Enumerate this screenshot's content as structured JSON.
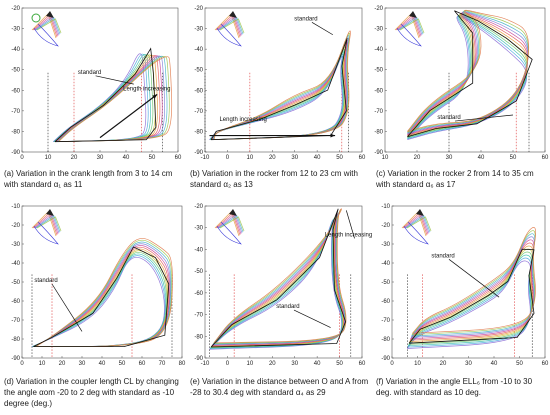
{
  "figure": {
    "panels": [
      {
        "caption": "(a) Variation in the crank length from 3 to 14 cm with standard α₁ as 11"
      },
      {
        "caption": "(b) Variation in the rocker from 12 to 23 cm with standard α₂ as 13"
      },
      {
        "caption": "(c) Variation in the rocker 2 from 14 to 35 cm with standard α₆ as 17"
      },
      {
        "caption": "(d) Variation in the coupler length CL by changing the angle αom -20 to 2 deg with standard as -10 degree (deg.)"
      },
      {
        "caption": "(e) Variation in the distance between O and A from -28 to 30.4 deg with standard α₄ as 29"
      },
      {
        "caption": "(f) Variation in the angle ELL₆ from -10 to 30 deg. with standard as 10 deg."
      }
    ]
  },
  "chart_data": [
    {
      "type": "line",
      "panel": "a",
      "xlim": [
        0,
        60
      ],
      "ylim": [
        -90,
        -20
      ],
      "xticks": [
        "0",
        "10",
        "20",
        "30",
        "40",
        "50",
        "60"
      ],
      "yticks": [
        "-20",
        "-30",
        "-40",
        "-50",
        "-60",
        "-70",
        "-80",
        "-90"
      ],
      "annotations": [
        "standard",
        "Length increasing"
      ],
      "series_count": 12
    },
    {
      "type": "line",
      "panel": "b",
      "xlim": [
        -10,
        60
      ],
      "ylim": [
        -90,
        -20
      ],
      "xticks": [
        "-10",
        "0",
        "10",
        "20",
        "30",
        "40",
        "50",
        "60"
      ],
      "yticks": [
        "-20",
        "-30",
        "-40",
        "-50",
        "-60",
        "-70",
        "-80",
        "-90"
      ],
      "annotations": [
        "standard",
        "Length increasing"
      ],
      "series_count": 12
    },
    {
      "type": "line",
      "panel": "c",
      "xlim": [
        10,
        60
      ],
      "ylim": [
        -90,
        -20
      ],
      "xticks": [
        "10",
        "20",
        "30",
        "40",
        "50",
        "60"
      ],
      "yticks": [
        "-20",
        "-30",
        "-40",
        "-50",
        "-60",
        "-70",
        "-80",
        "-90"
      ],
      "annotations": [
        "standard"
      ],
      "series_count": 12
    },
    {
      "type": "line",
      "panel": "d",
      "xlim": [
        0,
        80
      ],
      "ylim": [
        -90,
        -10
      ],
      "xticks": [
        "0",
        "10",
        "20",
        "30",
        "40",
        "50",
        "60",
        "70",
        "80"
      ],
      "yticks": [
        "-10",
        "-20",
        "-30",
        "-40",
        "-50",
        "-60",
        "-70",
        "-80",
        "-90"
      ],
      "annotations": [
        "standard"
      ],
      "series_count": 12
    },
    {
      "type": "line",
      "panel": "e",
      "xlim": [
        -10,
        60
      ],
      "ylim": [
        -90,
        -20
      ],
      "xticks": [
        "-10",
        "0",
        "10",
        "20",
        "30",
        "40",
        "50",
        "60"
      ],
      "yticks": [
        "-20",
        "-30",
        "-40",
        "-50",
        "-60",
        "-70",
        "-80",
        "-90"
      ],
      "annotations": [
        "standard",
        "Length increasing"
      ],
      "series_count": 12
    },
    {
      "type": "line",
      "panel": "f",
      "xlim": [
        0,
        60
      ],
      "ylim": [
        -90,
        -10
      ],
      "xticks": [
        "0",
        "10",
        "20",
        "30",
        "40",
        "50",
        "60"
      ],
      "yticks": [
        "-10",
        "-20",
        "-30",
        "-40",
        "-50",
        "-60",
        "-70",
        "-80",
        "-90"
      ],
      "annotations": [
        "standard"
      ],
      "series_count": 12
    }
  ],
  "colors": [
    "#8a6bd6",
    "#4aa7e0",
    "#3bbfae",
    "#6cc36a",
    "#c9c23a",
    "#e39a3a",
    "#e35a5a",
    "#c9489b",
    "#7d7dd8",
    "#44b2c9",
    "#9bc34a",
    "#e07a4a"
  ],
  "icons": {
    "linkage": "linkage-mechanism-icon"
  }
}
